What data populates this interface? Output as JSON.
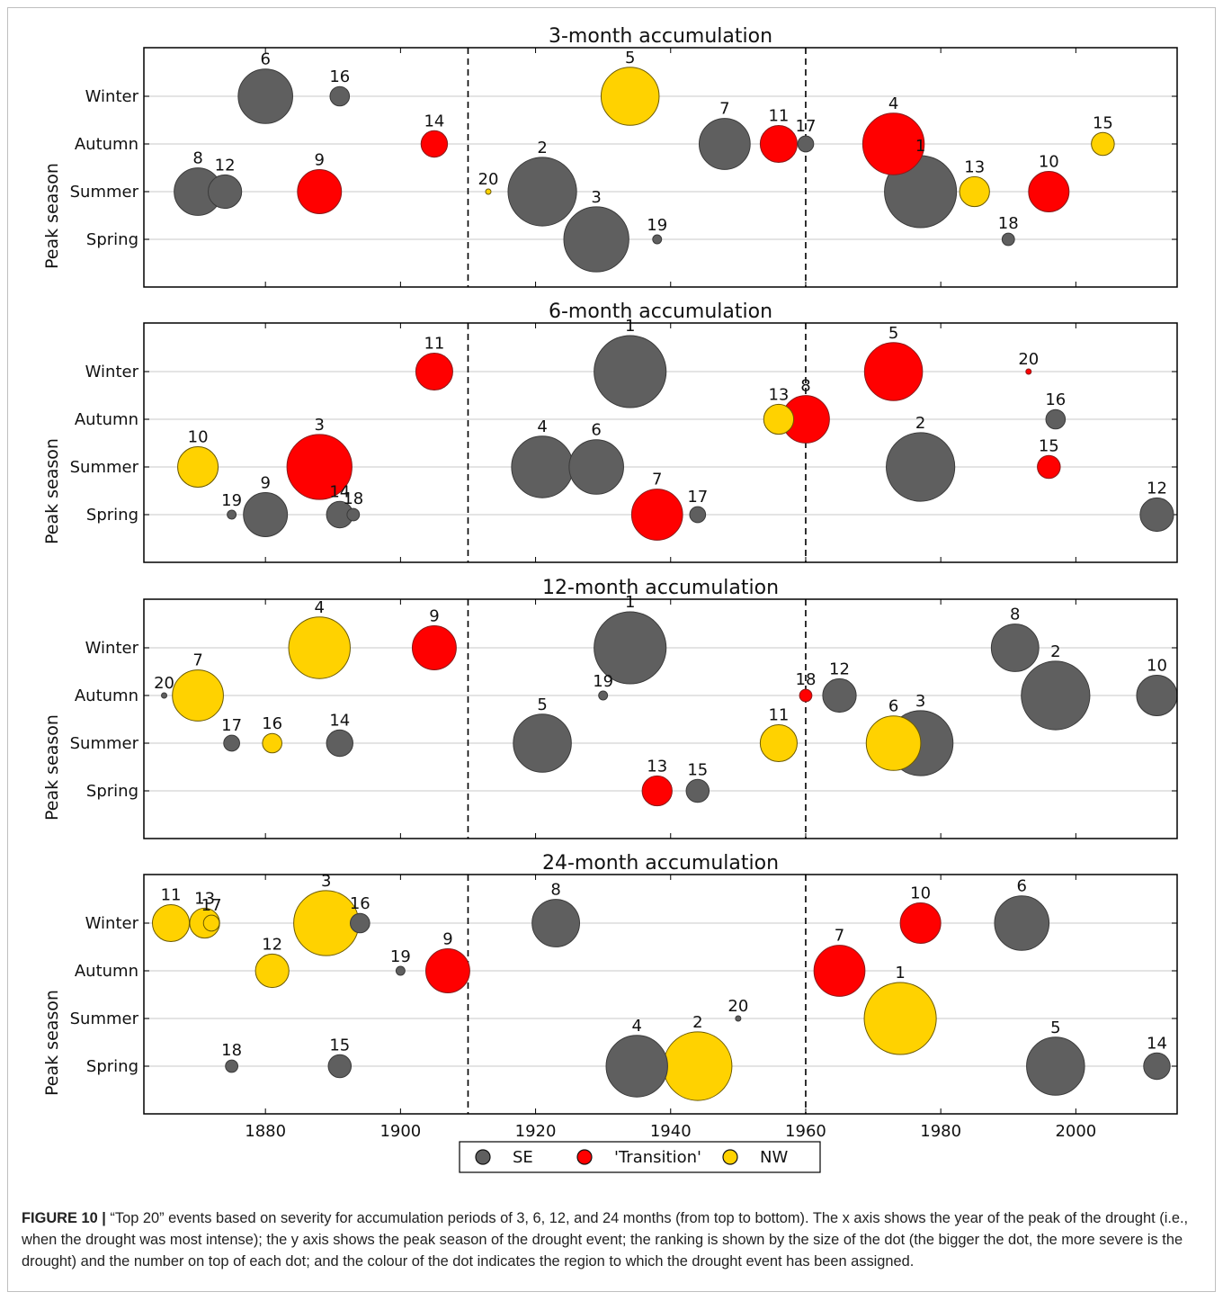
{
  "chart_data": [
    {
      "type": "scatter",
      "title": "3-month accumulation",
      "ylabel": "Peak season",
      "xlabel": "",
      "x_ticks": [
        1880,
        1900,
        1920,
        1940,
        1960,
        1980,
        2000
      ],
      "xlim": [
        1862,
        2015
      ],
      "y_categories": [
        "Spring",
        "Summer",
        "Autumn",
        "Winter"
      ],
      "dividers": [
        1910,
        1960
      ],
      "grid": "horizontal",
      "points": [
        {
          "rank": 1,
          "year": 1977,
          "season": "Summer",
          "region": "SE"
        },
        {
          "rank": 2,
          "year": 1921,
          "season": "Summer",
          "region": "SE"
        },
        {
          "rank": 3,
          "year": 1929,
          "season": "Spring",
          "region": "SE"
        },
        {
          "rank": 4,
          "year": 1973,
          "season": "Autumn",
          "region": "Transition"
        },
        {
          "rank": 5,
          "year": 1934,
          "season": "Winter",
          "region": "NW"
        },
        {
          "rank": 6,
          "year": 1880,
          "season": "Winter",
          "region": "SE"
        },
        {
          "rank": 7,
          "year": 1948,
          "season": "Autumn",
          "region": "SE"
        },
        {
          "rank": 8,
          "year": 1870,
          "season": "Summer",
          "region": "SE"
        },
        {
          "rank": 9,
          "year": 1888,
          "season": "Summer",
          "region": "Transition"
        },
        {
          "rank": 10,
          "year": 1996,
          "season": "Summer",
          "region": "Transition"
        },
        {
          "rank": 11,
          "year": 1956,
          "season": "Autumn",
          "region": "Transition"
        },
        {
          "rank": 12,
          "year": 1874,
          "season": "Summer",
          "region": "SE"
        },
        {
          "rank": 13,
          "year": 1985,
          "season": "Summer",
          "region": "NW"
        },
        {
          "rank": 14,
          "year": 1905,
          "season": "Autumn",
          "region": "Transition"
        },
        {
          "rank": 15,
          "year": 2004,
          "season": "Autumn",
          "region": "NW"
        },
        {
          "rank": 16,
          "year": 1891,
          "season": "Winter",
          "region": "SE"
        },
        {
          "rank": 17,
          "year": 1960,
          "season": "Autumn",
          "region": "SE"
        },
        {
          "rank": 18,
          "year": 1990,
          "season": "Spring",
          "region": "SE"
        },
        {
          "rank": 19,
          "year": 1938,
          "season": "Spring",
          "region": "SE"
        },
        {
          "rank": 20,
          "year": 1913,
          "season": "Summer",
          "region": "NW"
        }
      ]
    },
    {
      "type": "scatter",
      "title": "6-month accumulation",
      "ylabel": "Peak season",
      "xlabel": "",
      "x_ticks": [
        1880,
        1900,
        1920,
        1940,
        1960,
        1980,
        2000
      ],
      "xlim": [
        1862,
        2015
      ],
      "y_categories": [
        "Spring",
        "Summer",
        "Autumn",
        "Winter"
      ],
      "dividers": [
        1910,
        1960
      ],
      "grid": "horizontal",
      "points": [
        {
          "rank": 1,
          "year": 1934,
          "season": "Winter",
          "region": "SE"
        },
        {
          "rank": 2,
          "year": 1977,
          "season": "Summer",
          "region": "SE"
        },
        {
          "rank": 3,
          "year": 1888,
          "season": "Summer",
          "region": "Transition"
        },
        {
          "rank": 4,
          "year": 1921,
          "season": "Summer",
          "region": "SE"
        },
        {
          "rank": 5,
          "year": 1973,
          "season": "Winter",
          "region": "Transition"
        },
        {
          "rank": 6,
          "year": 1929,
          "season": "Summer",
          "region": "SE"
        },
        {
          "rank": 7,
          "year": 1938,
          "season": "Spring",
          "region": "Transition"
        },
        {
          "rank": 8,
          "year": 1960,
          "season": "Autumn",
          "region": "Transition"
        },
        {
          "rank": 9,
          "year": 1880,
          "season": "Spring",
          "region": "SE"
        },
        {
          "rank": 10,
          "year": 1870,
          "season": "Summer",
          "region": "NW"
        },
        {
          "rank": 11,
          "year": 1905,
          "season": "Winter",
          "region": "Transition"
        },
        {
          "rank": 12,
          "year": 2012,
          "season": "Spring",
          "region": "SE"
        },
        {
          "rank": 13,
          "year": 1956,
          "season": "Autumn",
          "region": "NW"
        },
        {
          "rank": 14,
          "year": 1891,
          "season": "Spring",
          "region": "SE"
        },
        {
          "rank": 15,
          "year": 1996,
          "season": "Summer",
          "region": "Transition"
        },
        {
          "rank": 16,
          "year": 1997,
          "season": "Autumn",
          "region": "SE"
        },
        {
          "rank": 17,
          "year": 1944,
          "season": "Spring",
          "region": "SE"
        },
        {
          "rank": 18,
          "year": 1893,
          "season": "Spring",
          "region": "SE"
        },
        {
          "rank": 19,
          "year": 1875,
          "season": "Spring",
          "region": "SE"
        },
        {
          "rank": 20,
          "year": 1993,
          "season": "Winter",
          "region": "Transition"
        }
      ]
    },
    {
      "type": "scatter",
      "title": "12-month accumulation",
      "ylabel": "Peak season",
      "xlabel": "",
      "x_ticks": [
        1880,
        1900,
        1920,
        1940,
        1960,
        1980,
        2000
      ],
      "xlim": [
        1862,
        2015
      ],
      "y_categories": [
        "Spring",
        "Summer",
        "Autumn",
        "Winter"
      ],
      "dividers": [
        1910,
        1960
      ],
      "grid": "horizontal",
      "points": [
        {
          "rank": 1,
          "year": 1934,
          "season": "Winter",
          "region": "SE"
        },
        {
          "rank": 2,
          "year": 1997,
          "season": "Autumn",
          "region": "SE"
        },
        {
          "rank": 3,
          "year": 1977,
          "season": "Summer",
          "region": "SE"
        },
        {
          "rank": 4,
          "year": 1888,
          "season": "Winter",
          "region": "NW"
        },
        {
          "rank": 5,
          "year": 1921,
          "season": "Summer",
          "region": "SE"
        },
        {
          "rank": 6,
          "year": 1973,
          "season": "Summer",
          "region": "NW"
        },
        {
          "rank": 7,
          "year": 1870,
          "season": "Autumn",
          "region": "NW"
        },
        {
          "rank": 8,
          "year": 1991,
          "season": "Winter",
          "region": "SE"
        },
        {
          "rank": 9,
          "year": 1905,
          "season": "Winter",
          "region": "Transition"
        },
        {
          "rank": 10,
          "year": 2012,
          "season": "Autumn",
          "region": "SE"
        },
        {
          "rank": 11,
          "year": 1956,
          "season": "Summer",
          "region": "NW"
        },
        {
          "rank": 12,
          "year": 1965,
          "season": "Autumn",
          "region": "SE"
        },
        {
          "rank": 13,
          "year": 1938,
          "season": "Spring",
          "region": "Transition"
        },
        {
          "rank": 14,
          "year": 1891,
          "season": "Summer",
          "region": "SE"
        },
        {
          "rank": 15,
          "year": 1944,
          "season": "Spring",
          "region": "SE"
        },
        {
          "rank": 16,
          "year": 1881,
          "season": "Summer",
          "region": "NW"
        },
        {
          "rank": 17,
          "year": 1875,
          "season": "Summer",
          "region": "SE"
        },
        {
          "rank": 18,
          "year": 1960,
          "season": "Autumn",
          "region": "Transition"
        },
        {
          "rank": 19,
          "year": 1930,
          "season": "Autumn",
          "region": "SE"
        },
        {
          "rank": 20,
          "year": 1865,
          "season": "Autumn",
          "region": "SE"
        }
      ]
    },
    {
      "type": "scatter",
      "title": "24-month accumulation",
      "ylabel": "Peak season",
      "xlabel": "",
      "x_ticks": [
        1880,
        1900,
        1920,
        1940,
        1960,
        1980,
        2000
      ],
      "xlim": [
        1862,
        2015
      ],
      "y_categories": [
        "Spring",
        "Summer",
        "Autumn",
        "Winter"
      ],
      "dividers": [
        1910,
        1960
      ],
      "grid": "horizontal",
      "points": [
        {
          "rank": 1,
          "year": 1974,
          "season": "Summer",
          "region": "NW"
        },
        {
          "rank": 2,
          "year": 1944,
          "season": "Spring",
          "region": "NW"
        },
        {
          "rank": 3,
          "year": 1889,
          "season": "Winter",
          "region": "NW"
        },
        {
          "rank": 4,
          "year": 1935,
          "season": "Spring",
          "region": "SE"
        },
        {
          "rank": 5,
          "year": 1997,
          "season": "Spring",
          "region": "SE"
        },
        {
          "rank": 6,
          "year": 1992,
          "season": "Winter",
          "region": "SE"
        },
        {
          "rank": 7,
          "year": 1965,
          "season": "Autumn",
          "region": "Transition"
        },
        {
          "rank": 8,
          "year": 1923,
          "season": "Winter",
          "region": "SE"
        },
        {
          "rank": 9,
          "year": 1907,
          "season": "Autumn",
          "region": "Transition"
        },
        {
          "rank": 10,
          "year": 1977,
          "season": "Winter",
          "region": "Transition"
        },
        {
          "rank": 11,
          "year": 1866,
          "season": "Winter",
          "region": "NW"
        },
        {
          "rank": 12,
          "year": 1881,
          "season": "Autumn",
          "region": "NW"
        },
        {
          "rank": 13,
          "year": 1871,
          "season": "Winter",
          "region": "NW"
        },
        {
          "rank": 14,
          "year": 2012,
          "season": "Spring",
          "region": "SE"
        },
        {
          "rank": 15,
          "year": 1891,
          "season": "Spring",
          "region": "SE"
        },
        {
          "rank": 16,
          "year": 1894,
          "season": "Winter",
          "region": "SE"
        },
        {
          "rank": 17,
          "year": 1872,
          "season": "Winter",
          "region": "NW"
        },
        {
          "rank": 18,
          "year": 1875,
          "season": "Spring",
          "region": "SE"
        },
        {
          "rank": 19,
          "year": 1900,
          "season": "Autumn",
          "region": "SE"
        },
        {
          "rank": 20,
          "year": 1950,
          "season": "Summer",
          "region": "SE"
        }
      ]
    }
  ],
  "legend": {
    "placement": "bottom-center",
    "items": [
      {
        "key": "SE",
        "label": "SE",
        "color": "#5f5f5f"
      },
      {
        "key": "Transition",
        "label": "'Transition'",
        "color": "#ff0000"
      },
      {
        "key": "NW",
        "label": "NW",
        "color": "#ffd200"
      }
    ]
  },
  "caption": {
    "label": "FIGURE 10 |",
    "text": "“Top 20” events based on severity for accumulation periods of 3, 6, 12, and 24 months (from top to bottom). The x axis shows the year of the peak of the drought (i.e., when the drought was most intense); the y axis shows the peak season of the drought event; the ranking is shown by the size of the dot (the bigger the dot, the more severe is the drought) and the number on top of each dot; and the colour of the dot indicates the region to which the drought event has been assigned."
  }
}
